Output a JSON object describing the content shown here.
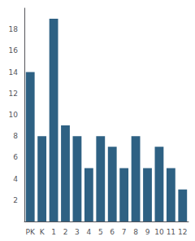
{
  "chart_data": {
    "type": "bar",
    "categories": [
      "PK",
      "K",
      "1",
      "2",
      "3",
      "4",
      "5",
      "6",
      "7",
      "8",
      "9",
      "10",
      "11",
      "12"
    ],
    "values": [
      14,
      8,
      19,
      9,
      8,
      5,
      8,
      7,
      5,
      8,
      5,
      7,
      5,
      3
    ],
    "color": "#2e6183",
    "ylim": [
      0,
      20
    ],
    "yticks": [
      2,
      4,
      6,
      8,
      10,
      12,
      14,
      16,
      18
    ],
    "grid": false
  }
}
